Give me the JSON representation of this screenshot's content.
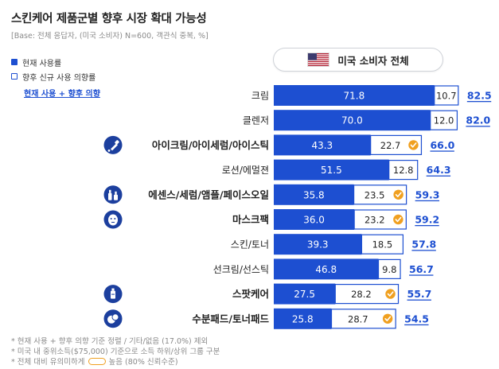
{
  "page": {
    "title": "스킨케어 제품군별 향후 시장 확대 가능성",
    "subtitle": "[Base: 전체 응답자, (미국 소비자) N=600, 객관식 중복, %]"
  },
  "legend": {
    "current_label": "현재 사용률",
    "new_label": "향후 신규 사용 의향률",
    "total_label": "현재 사용 + 향후 의향"
  },
  "pill": {
    "label": "미국 소비자 전체",
    "flag_icon": "us-flag-icon"
  },
  "colors": {
    "current": "#1d4fd1",
    "new_border": "#1d4fd1",
    "total": "#1d4fd1",
    "highlight": "#f0a020",
    "icon_bg": "#1c3f9e"
  },
  "chart_data": {
    "type": "bar",
    "orientation": "horizontal",
    "stacked": true,
    "categories": [
      "크림",
      "클렌저",
      "아이크림/아이세럼/아이스틱",
      "로션/에멀젼",
      "에센스/세럼/앰플/페이스오일",
      "마스크팩",
      "스킨/토너",
      "선크림/선스틱",
      "스팟케어",
      "수분패드/토너패드"
    ],
    "bold": [
      false,
      false,
      true,
      false,
      true,
      true,
      false,
      false,
      true,
      true
    ],
    "icons": [
      null,
      null,
      "dropper-icon",
      null,
      "serum-bottles-icon",
      "face-mask-icon",
      null,
      null,
      "spot-tube-icon",
      "cotton-pad-icon"
    ],
    "series": [
      {
        "name": "현재 사용률",
        "values": [
          71.8,
          70.0,
          43.3,
          51.5,
          35.8,
          36.0,
          39.3,
          46.8,
          27.5,
          25.8
        ]
      },
      {
        "name": "향후 신규 사용 의향률",
        "values": [
          10.7,
          12.0,
          22.7,
          12.8,
          23.5,
          23.2,
          18.5,
          9.8,
          28.2,
          28.7
        ]
      }
    ],
    "totals": [
      82.5,
      82.0,
      66.0,
      64.3,
      59.3,
      59.2,
      57.8,
      56.7,
      55.7,
      54.5
    ],
    "significant_high": [
      false,
      false,
      true,
      false,
      true,
      true,
      false,
      false,
      true,
      true
    ],
    "xlim": [
      0,
      100
    ]
  },
  "footnotes": {
    "line1": "* 현재 사용 + 향후 의향 기준 정렬 / 기타/없음 (17.0%) 제외",
    "line2": "* 미국 내 중위소득($75,000) 기준으로 소득 하위/상위 그룹 구분",
    "line3_pre": "* 전체 대비 유의미하게",
    "line3_post": "높음 (80% 신뢰수준)"
  }
}
